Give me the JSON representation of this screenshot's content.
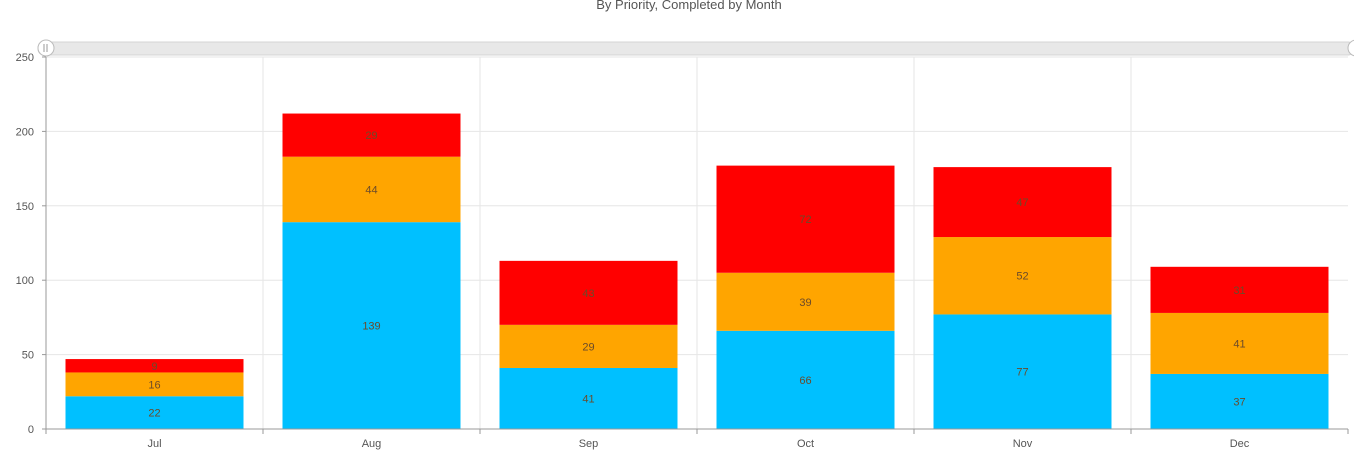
{
  "chart_data": {
    "type": "bar",
    "stacked": true,
    "title": "By Priority, Completed by Month",
    "xlabel": "",
    "ylabel": "",
    "categories": [
      "Jul",
      "Aug",
      "Sep",
      "Oct",
      "Nov",
      "Dec"
    ],
    "series": [
      {
        "color": "#00c0ff",
        "values": [
          22,
          139,
          41,
          66,
          77,
          37
        ]
      },
      {
        "color": "#ffa500",
        "values": [
          16,
          44,
          29,
          39,
          52,
          41
        ]
      },
      {
        "color": "#ff0000",
        "values": [
          9,
          29,
          43,
          72,
          47,
          31
        ]
      }
    ],
    "ylim": [
      0,
      250
    ],
    "yticks": [
      0,
      50,
      100,
      150,
      200,
      250
    ],
    "grid": true,
    "data_labels": true,
    "legend": "none",
    "scrollbar": true
  }
}
